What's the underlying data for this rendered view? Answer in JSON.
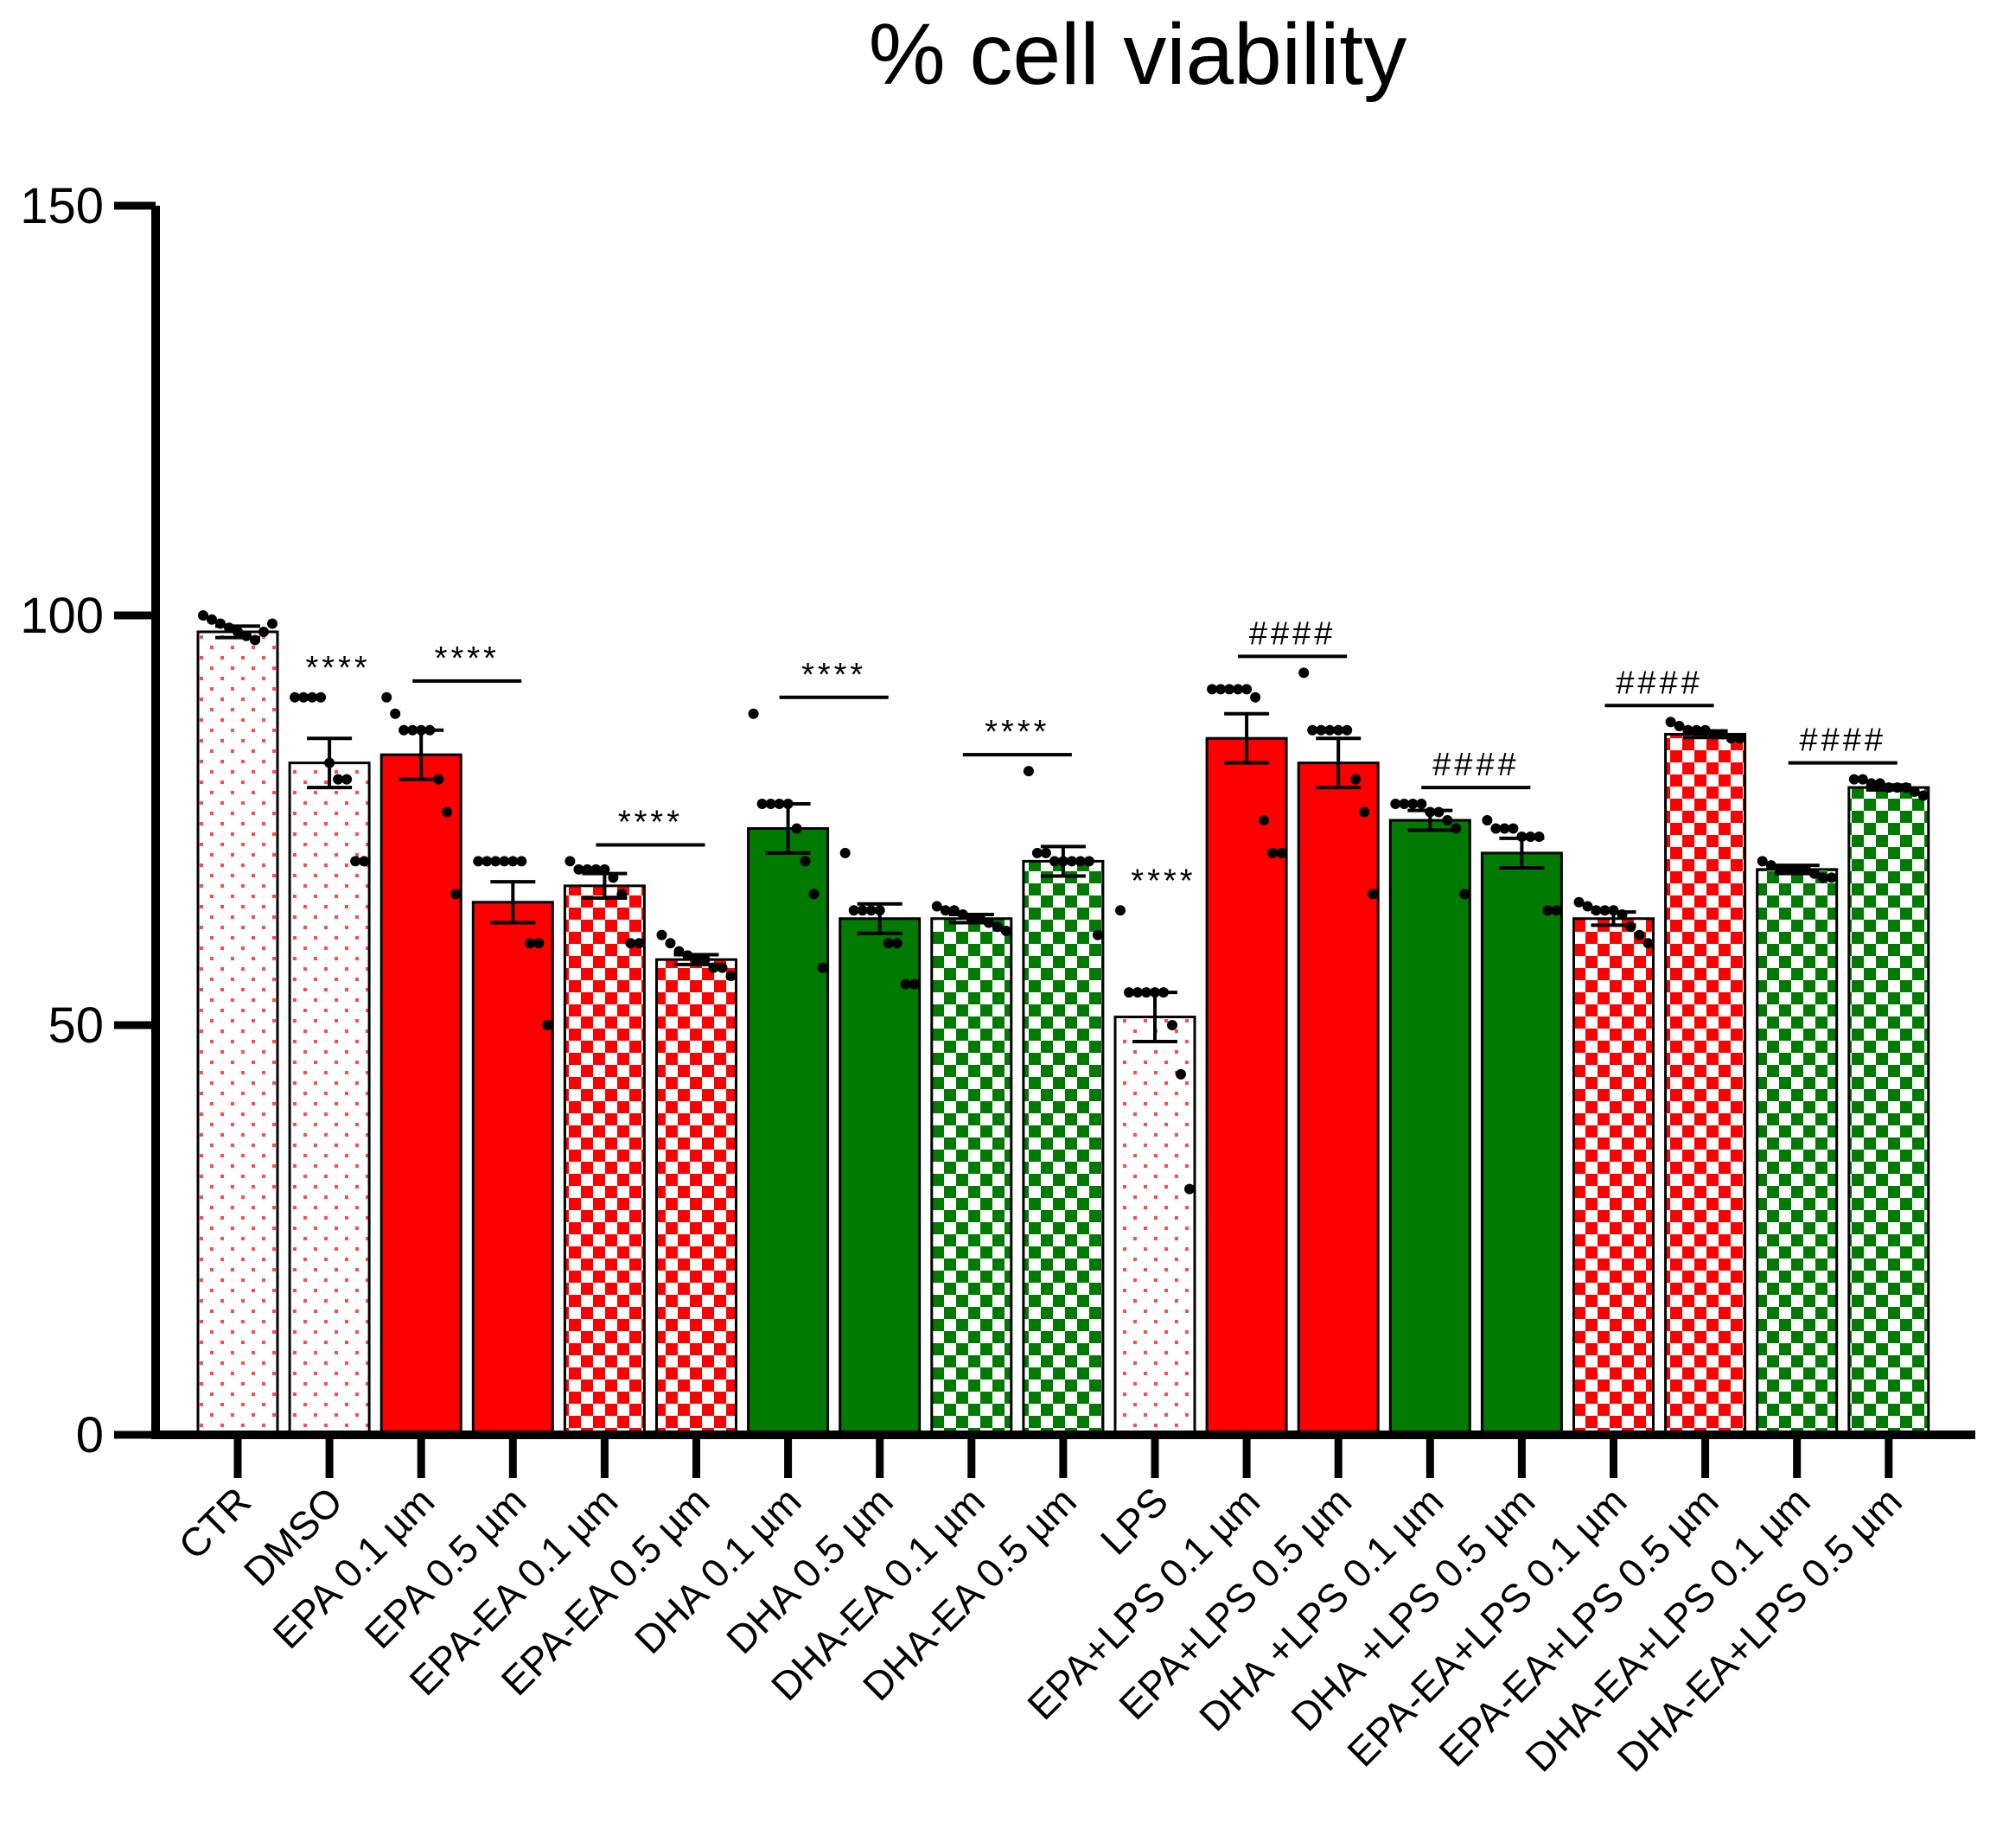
{
  "chart_data": {
    "type": "bar",
    "title": "% cell viability",
    "xlabel": "",
    "ylabel": "",
    "ylim": [
      0,
      150
    ],
    "yticks": [
      "0",
      "50",
      "100",
      "150"
    ],
    "ytick_values": [
      0,
      50,
      100,
      150
    ],
    "colors": {
      "red": "#ff0000",
      "green": "#007a00",
      "white": "#ffffff",
      "axis": "#000000"
    },
    "bars": [
      {
        "label": "CTR",
        "value": 98,
        "sem": 0.7,
        "pattern": "dots-red",
        "points": [
          100,
          99.5,
          99,
          98.5,
          98,
          97.5,
          97,
          98,
          99
        ]
      },
      {
        "label": "DMSO",
        "value": 82,
        "sem": 3,
        "pattern": "dots-red",
        "significance": "****",
        "sig_bar": false,
        "points": [
          90,
          90,
          90,
          90,
          82,
          80,
          80,
          70,
          70
        ]
      },
      {
        "label": "EPA 0.1 µm",
        "value": 83,
        "sem": 3,
        "pattern": "solid-red",
        "significance": "****",
        "sig_bar": true,
        "points": [
          90,
          88,
          86,
          86,
          86,
          86,
          80,
          76,
          66
        ]
      },
      {
        "label": "EPA 0.5 µm",
        "value": 65,
        "sem": 2.5,
        "pattern": "solid-red",
        "points": [
          70,
          70,
          70,
          70,
          70,
          70,
          60,
          60,
          50
        ]
      },
      {
        "label": "EPA-EA 0.1 µm",
        "value": 67,
        "sem": 1.5,
        "pattern": "check-red",
        "significance": "****",
        "sig_bar": true,
        "points": [
          70,
          69,
          69,
          69,
          69,
          68,
          66,
          60,
          60
        ]
      },
      {
        "label": "EPA-EA 0.5 µm",
        "value": 58,
        "sem": 0.6,
        "pattern": "check-red",
        "points": [
          61,
          60,
          59,
          58.5,
          58,
          58,
          57,
          57,
          56
        ]
      },
      {
        "label": "DHA 0.1 µm",
        "value": 74,
        "sem": 3,
        "pattern": "solid-green",
        "significance": "****",
        "sig_bar": true,
        "points": [
          88,
          77,
          77,
          77,
          77,
          74,
          70,
          66,
          57
        ]
      },
      {
        "label": "DHA 0.5 µm",
        "value": 63,
        "sem": 1.8,
        "pattern": "solid-green",
        "points": [
          71,
          64,
          64,
          64,
          64,
          60,
          60,
          55,
          55
        ]
      },
      {
        "label": "DHA-EA 0.1 µm",
        "value": 63,
        "sem": 0.5,
        "pattern": "check-green",
        "significance": "****",
        "sig_bar": true,
        "points": [
          64.5,
          64,
          64,
          63.5,
          63,
          63,
          62.5,
          62,
          61.5
        ]
      },
      {
        "label": "DHA-EA 0.5 µm",
        "value": 70,
        "sem": 1.8,
        "pattern": "check-green",
        "points": [
          81,
          71,
          71,
          70,
          70,
          70,
          70,
          70,
          61
        ]
      },
      {
        "label": "LPS",
        "value": 51,
        "sem": 3,
        "pattern": "dots-red",
        "significance": "****",
        "sig_bar": false,
        "points": [
          64,
          54,
          54,
          54,
          54,
          54,
          50,
          44,
          30
        ]
      },
      {
        "label": "EPA+LPS 0.1 µm",
        "value": 85,
        "sem": 3,
        "pattern": "solid-red",
        "significance": "####",
        "sig_bar": true,
        "points": [
          91,
          91,
          91,
          91,
          91,
          90,
          75,
          71,
          71
        ]
      },
      {
        "label": "EPA+LPS 0.5 µm",
        "value": 82,
        "sem": 3,
        "pattern": "solid-red",
        "points": [
          93,
          86,
          86,
          86,
          86,
          86,
          80,
          76,
          66
        ]
      },
      {
        "label": "DHA +LPS 0.1 µm",
        "value": 75,
        "sem": 1.2,
        "pattern": "solid-green",
        "significance": "####",
        "sig_bar": true,
        "points": [
          77,
          77,
          77,
          77,
          76,
          76,
          75,
          74,
          66
        ]
      },
      {
        "label": "DHA +LPS 0.5 µm",
        "value": 71,
        "sem": 1.8,
        "pattern": "solid-green",
        "points": [
          75,
          74,
          74,
          74,
          73,
          73,
          73,
          64,
          64
        ]
      },
      {
        "label": "EPA-EA+LPS 0.1 µm",
        "value": 63,
        "sem": 0.8,
        "pattern": "check-red",
        "significance": "####",
        "sig_bar": true,
        "points": [
          65,
          64.5,
          64,
          64,
          64,
          63.5,
          62,
          61,
          60
        ]
      },
      {
        "label": "EPA-EA+LPS 0.5 µm",
        "value": 85.5,
        "sem": 0.4,
        "pattern": "check-red",
        "points": [
          87,
          86.5,
          86,
          86,
          86,
          85.5,
          85.5,
          85,
          85
        ]
      },
      {
        "label": "DHA-EA+LPS 0.1 µm",
        "value": 69,
        "sem": 0.5,
        "pattern": "check-green",
        "significance": "####",
        "sig_bar": true,
        "points": [
          70,
          69.5,
          69,
          69,
          69,
          69,
          68.5,
          68,
          68
        ]
      },
      {
        "label": "DHA-EA+LPS 0.5 µm",
        "value": 79,
        "sem": 0.3,
        "pattern": "check-green",
        "points": [
          80,
          80,
          79.5,
          79.5,
          79,
          79,
          79,
          78.5,
          78
        ]
      }
    ]
  }
}
